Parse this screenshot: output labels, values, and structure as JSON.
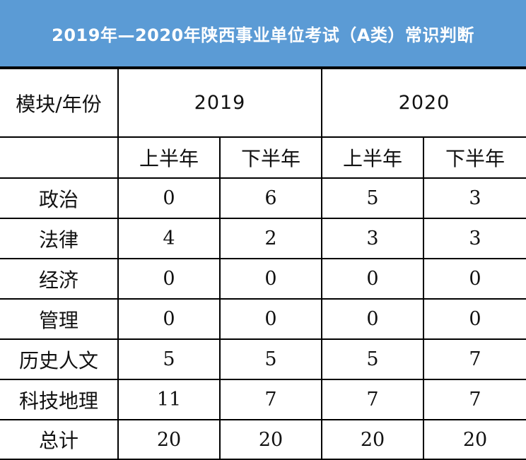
{
  "title": "2019年—2020年陕西事业单位考试（A类）常识判断",
  "header": {
    "module_label": "模块/年份",
    "years": [
      "2019",
      "2020"
    ],
    "halves": [
      "上半年",
      "下半年",
      "上半年",
      "下半年"
    ]
  },
  "rows": [
    {
      "label": "政治",
      "values": [
        "0",
        "6",
        "5",
        "3"
      ]
    },
    {
      "label": "法律",
      "values": [
        "4",
        "2",
        "3",
        "3"
      ]
    },
    {
      "label": "经济",
      "values": [
        "0",
        "0",
        "0",
        "0"
      ]
    },
    {
      "label": "管理",
      "values": [
        "0",
        "0",
        "0",
        "0"
      ]
    },
    {
      "label": "历史人文",
      "values": [
        "5",
        "5",
        "5",
        "7"
      ]
    },
    {
      "label": "科技地理",
      "values": [
        "11",
        "7",
        "7",
        "7"
      ]
    },
    {
      "label": "总计",
      "values": [
        "20",
        "20",
        "20",
        "20"
      ]
    }
  ],
  "colors": {
    "title_bg": "#5b9bd5",
    "title_text": "#ffffff",
    "border": "#000000"
  }
}
